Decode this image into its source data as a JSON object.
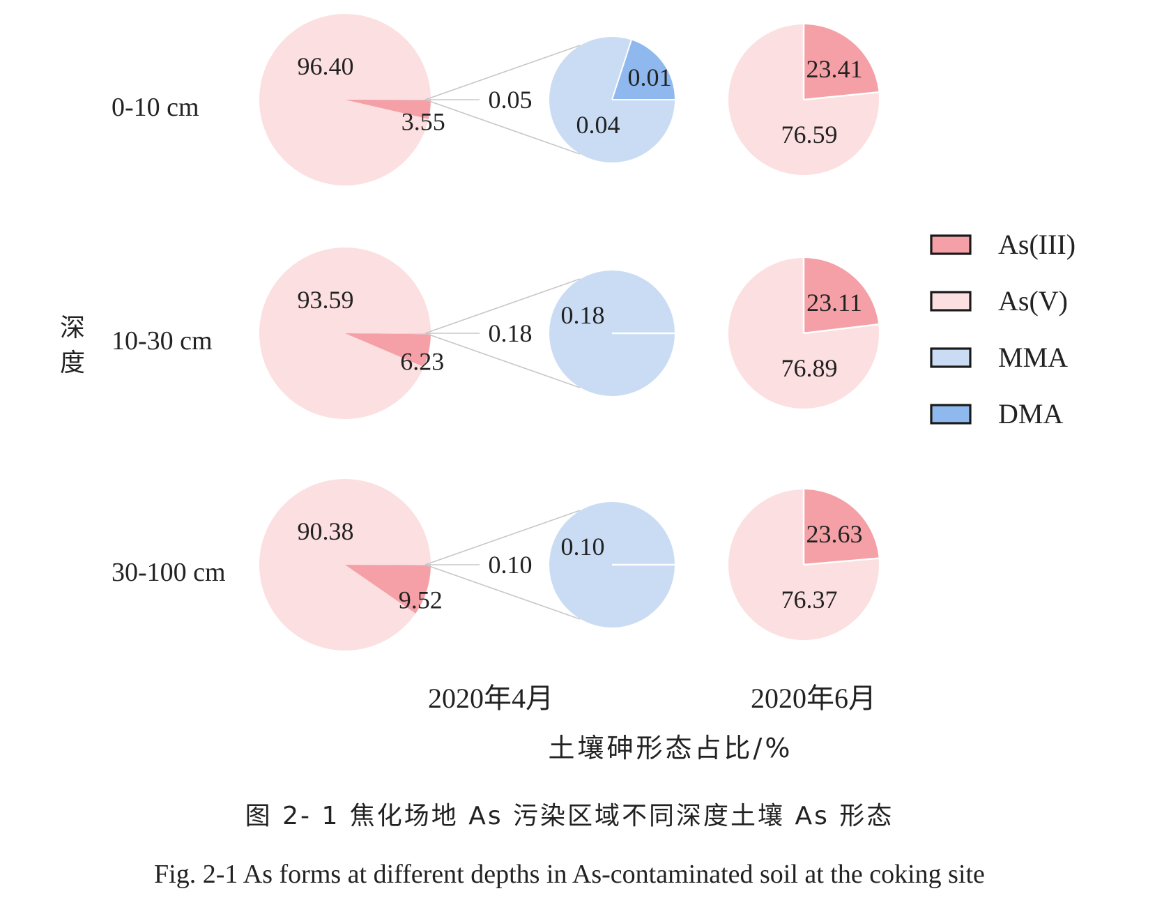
{
  "chart_data": {
    "type": "pie",
    "y_axis_label": "深度",
    "x_axis_label": "土壤砷形态占比/%",
    "column_labels": [
      "2020年4月",
      "2020年6月"
    ],
    "legend": {
      "placement": "right",
      "entries": [
        {
          "name": "As(III)",
          "color": "#f4a0a6"
        },
        {
          "name": "As(V)",
          "color": "#fcdfe0"
        },
        {
          "name": "MMA",
          "color": "#c9dcf4"
        },
        {
          "name": "DMA",
          "color": "#8fb9ee"
        }
      ]
    },
    "rows": [
      {
        "depth": "0-10 cm",
        "april": {
          "as5": 96.4,
          "as3": 3.55,
          "organic": 0.05,
          "as5_label": "96.40",
          "as3_label": "3.55",
          "organic_label": "0.05",
          "mma": 0.04,
          "dma": 0.01,
          "mma_label": "0.04",
          "dma_label": "0.01"
        },
        "june": {
          "as3": 23.41,
          "as5": 76.59,
          "as3_label": "23.41",
          "as5_label": "76.59"
        }
      },
      {
        "depth": "10-30 cm",
        "april": {
          "as5": 93.59,
          "as3": 6.23,
          "organic": 0.18,
          "as5_label": "93.59",
          "as3_label": "6.23",
          "organic_label": "0.18",
          "mma": 0.18,
          "dma": 0,
          "mma_label": "0.18",
          "dma_label": ""
        },
        "june": {
          "as3": 23.11,
          "as5": 76.89,
          "as3_label": "23.11",
          "as5_label": "76.89"
        }
      },
      {
        "depth": "30-100 cm",
        "april": {
          "as5": 90.38,
          "as3": 9.52,
          "organic": 0.1,
          "as5_label": "90.38",
          "as3_label": "9.52",
          "organic_label": "0.10",
          "mma": 0.1,
          "dma": 0,
          "mma_label": "0.10",
          "dma_label": ""
        },
        "june": {
          "as3": 23.63,
          "as5": 76.37,
          "as3_label": "23.63",
          "as5_label": "76.37"
        }
      }
    ]
  },
  "caption_cn": "图 2- 1 焦化场地 As 污染区域不同深度土壤 As 形态",
  "caption_en": "Fig. 2-1 As forms at different depths in As-contaminated soil at the coking site"
}
